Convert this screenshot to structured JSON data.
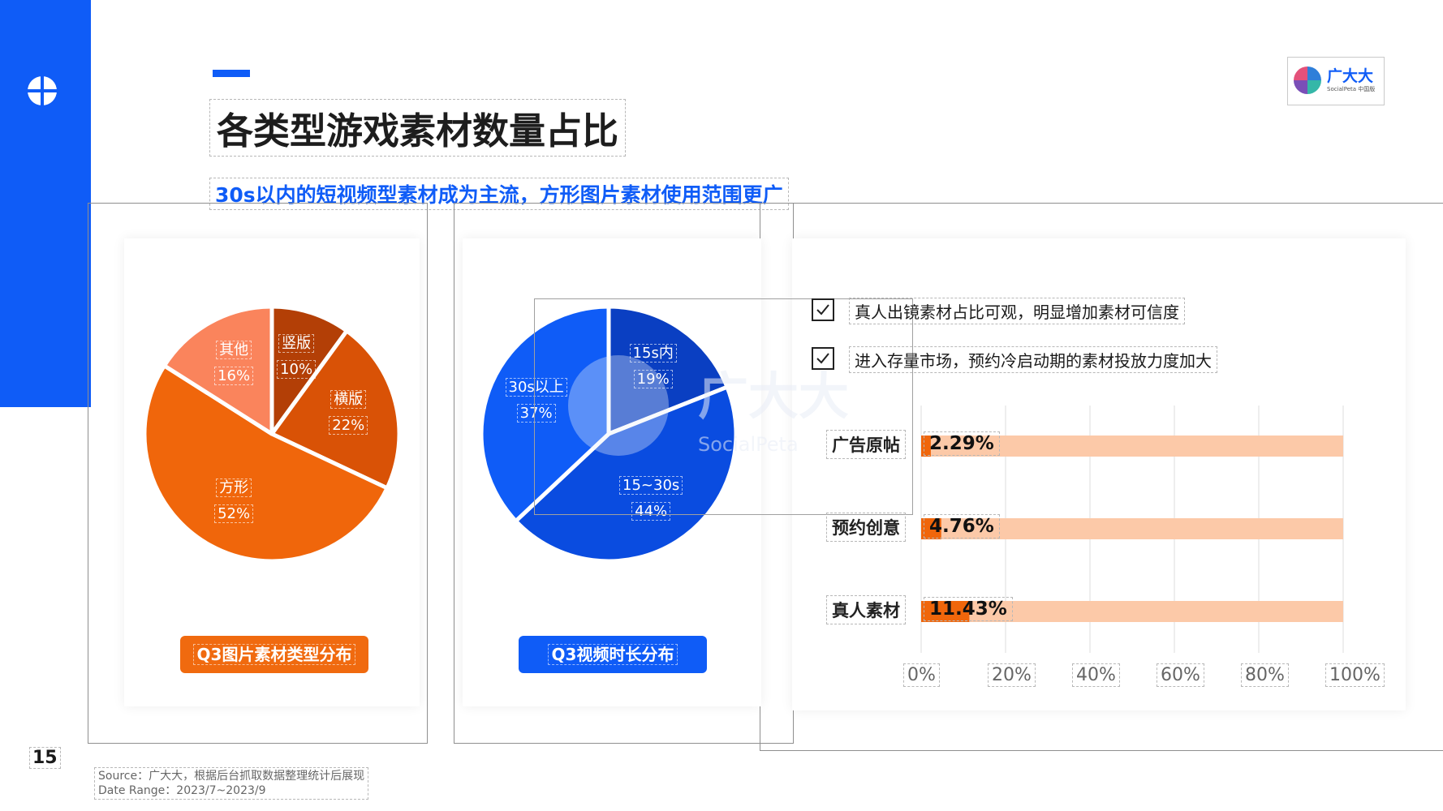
{
  "page": {
    "title": "各类型游戏素材数量占比",
    "subtitle": "30s以内的短视频型素材成为主流，方形图片素材使用范围更广",
    "page_number": "15",
    "footnote_source": "Source：广大大，根据后台抓取数据整理统计后展现",
    "footnote_date": "Date Range：2023/7~2023/9",
    "accent_color": "#0f5cf7"
  },
  "brand": {
    "name": "广大大",
    "sub": "SocialPeta 中国版"
  },
  "watermark": {
    "text": "广大大",
    "sub": "SocialPeta"
  },
  "notes": [
    {
      "text": "真人出镜素材占比可观，明显增加素材可信度",
      "icon": "checkbox-checked-icon"
    },
    {
      "text": "进入存量市场，预约冷启动期的素材投放力度加大",
      "icon": "checkbox-checked-icon"
    }
  ],
  "chart_data": [
    {
      "type": "pie",
      "title": "Q3图片素材类型分布",
      "title_color": "#f06a0f",
      "slices": [
        {
          "label": "竖版",
          "value": 10,
          "display": "10%",
          "color": "#b33f06"
        },
        {
          "label": "横版",
          "value": 22,
          "display": "22%",
          "color": "#d95206"
        },
        {
          "label": "方形",
          "value": 52,
          "display": "52%",
          "color": "#f0660b"
        },
        {
          "label": "其他",
          "value": 16,
          "display": "16%",
          "color": "#fa845c"
        }
      ]
    },
    {
      "type": "pie",
      "title": "Q3视频时长分布",
      "title_color": "#0f5cf7",
      "slices": [
        {
          "label": "15s内",
          "value": 19,
          "display": "19%",
          "color": "#0a3fc2"
        },
        {
          "label": "15~30s",
          "value": 44,
          "display": "44%",
          "color": "#0a4ce0"
        },
        {
          "label": "30s以上",
          "value": 37,
          "display": "37%",
          "color": "#0f5cf7"
        }
      ]
    },
    {
      "type": "bar",
      "orientation": "horizontal",
      "categories": [
        "广告原帖",
        "预约创意",
        "真人素材"
      ],
      "values": [
        2.29,
        4.76,
        11.43
      ],
      "value_labels": [
        "2.29%",
        "4.76%",
        "11.43%"
      ],
      "xlim": [
        0,
        100
      ],
      "x_ticks": [
        "0%",
        "20%",
        "40%",
        "60%",
        "80%",
        "100%"
      ],
      "bar_color": "#f0660b",
      "track_color": "#fcc9a8",
      "grid": true
    }
  ]
}
